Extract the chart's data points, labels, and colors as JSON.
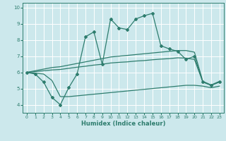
{
  "xlabel": "Humidex (Indice chaleur)",
  "xlim": [
    -0.5,
    23.5
  ],
  "ylim": [
    3.5,
    10.3
  ],
  "xticks": [
    0,
    1,
    2,
    3,
    4,
    5,
    6,
    7,
    8,
    9,
    10,
    11,
    12,
    13,
    14,
    15,
    16,
    17,
    18,
    19,
    20,
    21,
    22,
    23
  ],
  "yticks": [
    4,
    5,
    6,
    7,
    8,
    9,
    10
  ],
  "bg_color": "#cce8ec",
  "line_color": "#2e7d6e",
  "grid_color": "#ffffff",
  "series": [
    {
      "x": [
        0,
        1,
        2,
        3,
        4,
        5,
        6,
        7,
        8,
        9,
        10,
        11,
        12,
        13,
        14,
        15,
        16,
        17,
        18,
        19,
        20,
        21,
        22,
        23
      ],
      "y": [
        6.0,
        5.9,
        5.4,
        4.45,
        4.0,
        5.05,
        5.9,
        8.2,
        8.5,
        6.5,
        9.3,
        8.75,
        8.65,
        9.3,
        9.5,
        9.65,
        7.65,
        7.45,
        7.3,
        6.8,
        7.0,
        5.4,
        5.2,
        5.4
      ],
      "marker": "D",
      "markersize": 2.0,
      "linewidth": 0.9
    },
    {
      "x": [
        0,
        1,
        2,
        3,
        4,
        5,
        6,
        7,
        8,
        9,
        10,
        11,
        12,
        13,
        14,
        15,
        16,
        17,
        18,
        19,
        20,
        21,
        22,
        23
      ],
      "y": [
        6.0,
        6.1,
        6.2,
        6.3,
        6.35,
        6.45,
        6.55,
        6.65,
        6.75,
        6.85,
        6.95,
        7.0,
        7.05,
        7.1,
        7.15,
        7.2,
        7.25,
        7.3,
        7.35,
        7.35,
        7.25,
        5.45,
        5.22,
        5.45
      ],
      "marker": null,
      "linewidth": 0.9
    },
    {
      "x": [
        0,
        1,
        2,
        3,
        4,
        5,
        6,
        7,
        8,
        9,
        10,
        11,
        12,
        13,
        14,
        15,
        16,
        17,
        18,
        19,
        20,
        21,
        22,
        23
      ],
      "y": [
        6.0,
        6.05,
        6.1,
        6.15,
        6.18,
        6.25,
        6.32,
        6.38,
        6.45,
        6.5,
        6.58,
        6.62,
        6.65,
        6.7,
        6.73,
        6.78,
        6.82,
        6.85,
        6.9,
        6.88,
        6.8,
        5.42,
        5.2,
        5.42
      ],
      "marker": null,
      "linewidth": 0.9
    },
    {
      "x": [
        0,
        1,
        2,
        3,
        4,
        5,
        6,
        7,
        8,
        9,
        10,
        11,
        12,
        13,
        14,
        15,
        16,
        17,
        18,
        19,
        20,
        21,
        22,
        23
      ],
      "y": [
        6.0,
        5.95,
        5.9,
        5.5,
        4.5,
        4.5,
        4.55,
        4.6,
        4.65,
        4.7,
        4.75,
        4.8,
        4.85,
        4.9,
        4.95,
        5.0,
        5.05,
        5.1,
        5.15,
        5.2,
        5.2,
        5.15,
        5.05,
        5.15
      ],
      "marker": null,
      "linewidth": 0.9
    }
  ]
}
